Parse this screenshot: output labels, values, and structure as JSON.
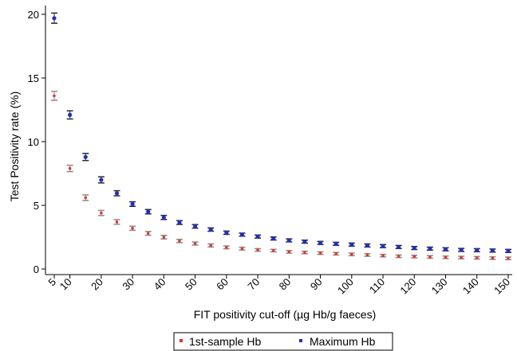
{
  "chart_data": {
    "type": "scatter",
    "xlabel": "FIT positivity cut-off (µg Hb/g faeces)",
    "ylabel": "Test Positivity rate (%)",
    "xlim": [
      5,
      150
    ],
    "ylim": [
      0,
      20
    ],
    "xticks": [
      5,
      10,
      20,
      30,
      40,
      50,
      60,
      70,
      80,
      90,
      100,
      110,
      120,
      130,
      140,
      150
    ],
    "yticks": [
      0,
      5,
      10,
      15,
      20
    ],
    "grid": false,
    "legend_position": "bottom",
    "error_bars": true,
    "x": [
      5,
      10,
      15,
      20,
      25,
      30,
      35,
      40,
      45,
      50,
      55,
      60,
      65,
      70,
      75,
      80,
      85,
      90,
      95,
      100,
      105,
      110,
      115,
      120,
      125,
      130,
      135,
      140,
      145,
      150
    ],
    "series": [
      {
        "name": "1st-sample Hb",
        "color": "#e8322b",
        "values": [
          13.6,
          7.9,
          5.6,
          4.4,
          3.7,
          3.2,
          2.8,
          2.5,
          2.2,
          2.0,
          1.85,
          1.7,
          1.6,
          1.5,
          1.45,
          1.35,
          1.3,
          1.25,
          1.2,
          1.15,
          1.1,
          1.05,
          1.0,
          0.98,
          0.95,
          0.92,
          0.9,
          0.88,
          0.86,
          0.84
        ],
        "err": [
          0.35,
          0.25,
          0.22,
          0.2,
          0.18,
          0.16,
          0.15,
          0.14,
          0.13,
          0.12,
          0.12,
          0.11,
          0.11,
          0.1,
          0.1,
          0.1,
          0.1,
          0.1,
          0.1,
          0.1,
          0.1,
          0.1,
          0.1,
          0.1,
          0.1,
          0.1,
          0.1,
          0.1,
          0.1,
          0.1
        ]
      },
      {
        "name": "Maximum Hb",
        "color": "#1f2fc4",
        "values": [
          19.7,
          12.1,
          8.8,
          7.0,
          5.95,
          5.1,
          4.5,
          4.05,
          3.65,
          3.35,
          3.1,
          2.85,
          2.7,
          2.55,
          2.4,
          2.25,
          2.15,
          2.05,
          1.98,
          1.92,
          1.85,
          1.8,
          1.73,
          1.65,
          1.6,
          1.55,
          1.5,
          1.48,
          1.45,
          1.42
        ],
        "err": [
          0.4,
          0.32,
          0.28,
          0.24,
          0.2,
          0.18,
          0.17,
          0.16,
          0.15,
          0.14,
          0.13,
          0.13,
          0.12,
          0.12,
          0.12,
          0.12,
          0.12,
          0.12,
          0.12,
          0.12,
          0.12,
          0.12,
          0.12,
          0.12,
          0.12,
          0.12,
          0.12,
          0.12,
          0.12,
          0.12
        ]
      }
    ]
  }
}
